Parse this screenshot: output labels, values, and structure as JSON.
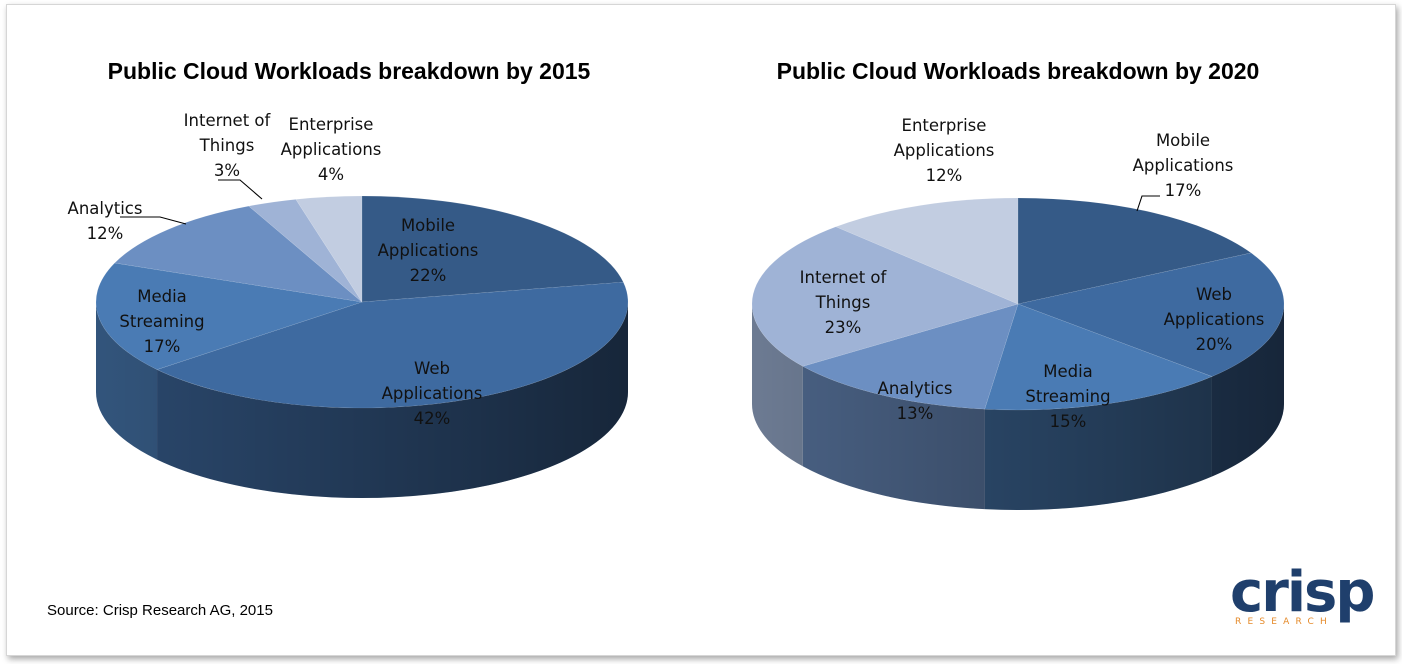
{
  "source": "Source: Crisp Research AG, 2015",
  "logo": {
    "word": "crisp",
    "sub": "RESEARCH",
    "word_color": "#1f3f6c",
    "sub_color": "#e58a2a"
  },
  "chart_data": [
    {
      "type": "pie",
      "title": "Public Cloud Workloads breakdown by 2015",
      "categories": [
        "Mobile Applications",
        "Web Applications",
        "Media Streaming",
        "Analytics",
        "Internet of Things",
        "Enterprise Applications"
      ],
      "values": [
        22,
        42,
        17,
        12,
        3,
        4
      ],
      "labels": [
        [
          "Mobile",
          "Applications",
          "22%"
        ],
        [
          "Web",
          "Applications",
          "42%"
        ],
        [
          "Media",
          "Streaming",
          "17%"
        ],
        [
          "Analytics",
          "12%"
        ],
        [
          "Internet of",
          "Things",
          "3%"
        ],
        [
          "Enterprise",
          "Applications",
          "4%"
        ]
      ],
      "colors": [
        "#355a87",
        "#3e6aa0",
        "#4a7bb4",
        "#6c8fc2",
        "#9fb3d6",
        "#c2cde1"
      ]
    },
    {
      "type": "pie",
      "title": "Public Cloud Workloads breakdown by 2020",
      "categories": [
        "Mobile Applications",
        "Web Applications",
        "Media Streaming",
        "Analytics",
        "Internet of Things",
        "Enterprise Applications"
      ],
      "values": [
        17,
        20,
        15,
        13,
        23,
        12
      ],
      "labels": [
        [
          "Mobile",
          "Applications",
          "17%"
        ],
        [
          "Web",
          "Applications",
          "20%"
        ],
        [
          "Media",
          "Streaming",
          "15%"
        ],
        [
          "Analytics",
          "13%"
        ],
        [
          "Internet of",
          "Things",
          "23%"
        ],
        [
          "Enterprise",
          "Applications",
          "12%"
        ]
      ],
      "colors": [
        "#355a87",
        "#3e6aa0",
        "#4a7bb4",
        "#6c8fc2",
        "#9fb3d6",
        "#c2cde1"
      ]
    }
  ]
}
